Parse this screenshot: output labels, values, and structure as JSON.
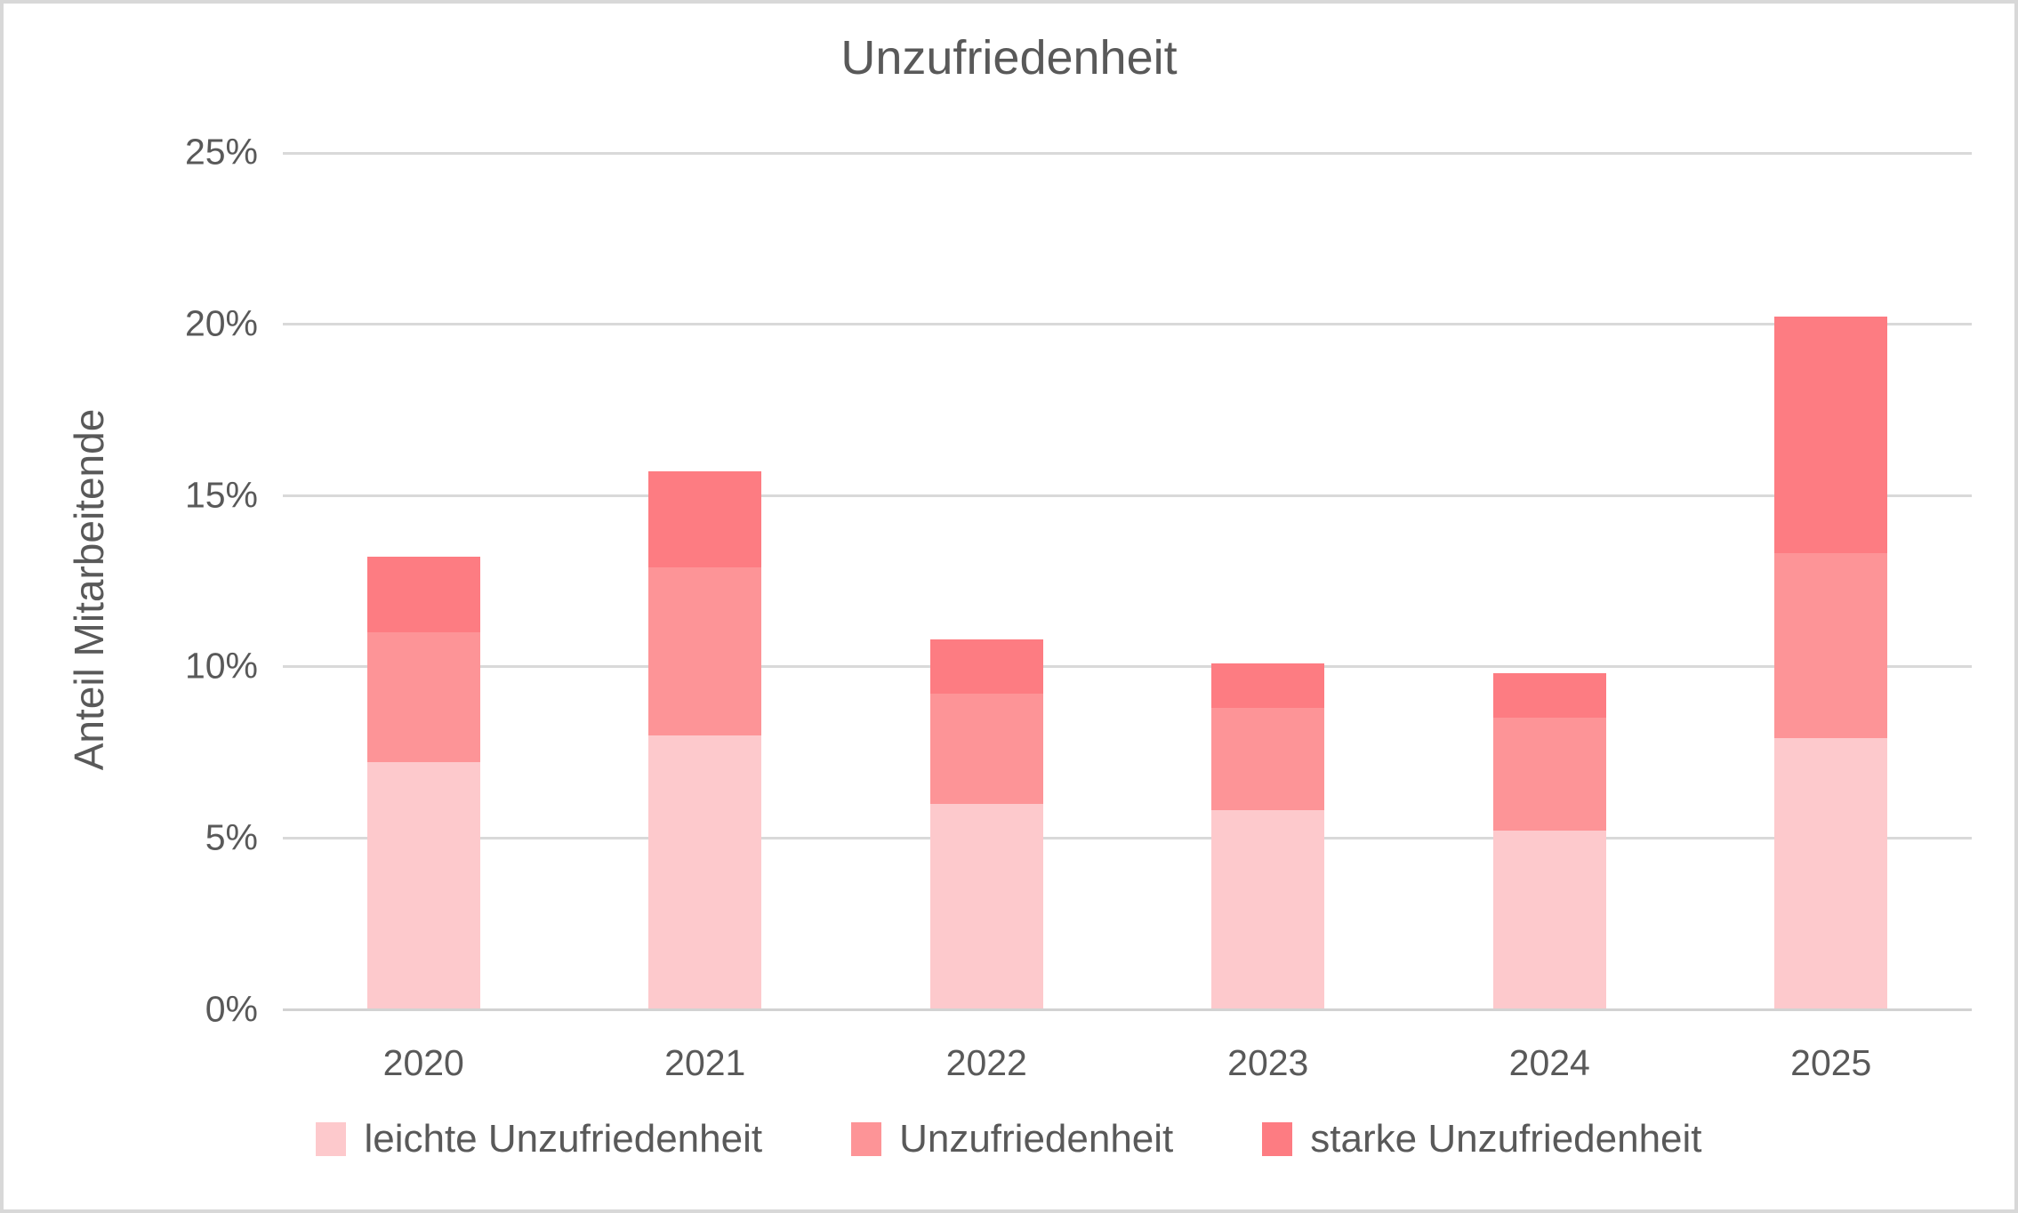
{
  "chart": {
    "title": "Unzufriedenheit",
    "y_axis_label": "Anteil Mitarbeitende"
  },
  "colors": {
    "text": "#595959",
    "gridline": "#d9d9d9",
    "axis_line": "#d2d2d2",
    "canvas_border": "#d8d8d8",
    "background": "#ffffff"
  },
  "chart_data": {
    "type": "bar",
    "stacked": true,
    "title": "Unzufriedenheit",
    "xlabel": "",
    "ylabel": "Anteil Mitarbeitende",
    "categories": [
      "2020",
      "2021",
      "2022",
      "2023",
      "2024",
      "2025"
    ],
    "series": [
      {
        "name": "leichte Unzufriedenheit",
        "color": "#FDC9CC",
        "values": [
          7.2,
          8.0,
          6.0,
          5.8,
          5.2,
          7.9
        ]
      },
      {
        "name": "Unzufriedenheit",
        "color": "#FD9497",
        "values": [
          3.8,
          4.9,
          3.2,
          3.0,
          3.3,
          5.4
        ]
      },
      {
        "name": "starke Unzufriedenheit",
        "color": "#FD7C82",
        "values": [
          2.2,
          2.8,
          1.6,
          1.3,
          1.3,
          6.9
        ]
      }
    ],
    "stack_totals": [
      13.2,
      15.7,
      10.8,
      10.1,
      9.8,
      20.2
    ],
    "ylim": [
      0,
      25
    ],
    "yticks": [
      {
        "value": 0,
        "label": "0%"
      },
      {
        "value": 5,
        "label": "5%"
      },
      {
        "value": 10,
        "label": "10%"
      },
      {
        "value": 15,
        "label": "15%"
      },
      {
        "value": 20,
        "label": "20%"
      },
      {
        "value": 25,
        "label": "25%"
      }
    ],
    "grid": true,
    "legend_position": "bottom"
  }
}
